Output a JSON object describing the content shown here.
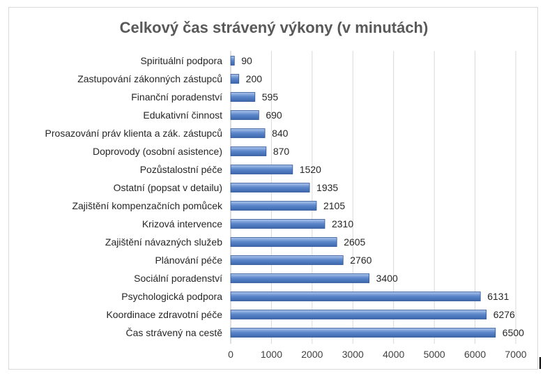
{
  "chart_data": {
    "type": "bar",
    "orientation": "horizontal",
    "title": "Celkový čas strávený výkony (v minutách)",
    "categories": [
      "Spirituální podpora",
      "Zastupování zákonných zástupců",
      "Finanční poradenství",
      "Edukativní činnost",
      "Prosazování práv klienta a zák. zástupců",
      "Doprovody (osobní asistence)",
      "Pozůstalostní péče",
      "Ostatní (popsat v detailu)",
      "Zajištění kompenzačních pomůcek",
      "Krizová intervence",
      "Zajištění návazných služeb",
      "Plánování péče",
      "Sociální poradenství",
      "Psychologická podpora",
      "Koordinace zdravotní péče",
      "Čas strávený na cestě"
    ],
    "values": [
      90,
      200,
      595,
      690,
      840,
      870,
      1520,
      1935,
      2105,
      2310,
      2605,
      2760,
      3400,
      6131,
      6276,
      6500
    ],
    "xlim": [
      0,
      7000
    ],
    "xticks": [
      0,
      1000,
      2000,
      3000,
      4000,
      5000,
      6000,
      7000
    ],
    "grid": true,
    "legend": "none",
    "bar_color": "#5b85c8",
    "bar_edge_color": "#2f5597"
  }
}
